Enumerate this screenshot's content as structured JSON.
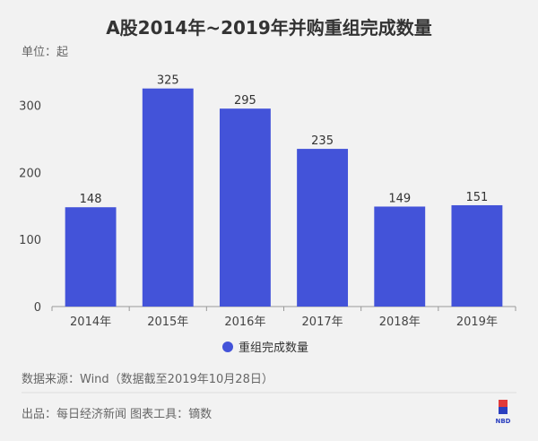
{
  "chart_data": {
    "type": "bar",
    "title": "A股2014年~2019年并购重组完成数量",
    "unit_label": "单位：起",
    "categories": [
      "2014年",
      "2015年",
      "2016年",
      "2017年",
      "2018年",
      "2019年"
    ],
    "series": [
      {
        "name": "重组完成数量",
        "values": [
          148,
          325,
          295,
          235,
          149,
          151
        ]
      }
    ],
    "ylim": [
      0,
      350
    ],
    "yticks": [
      0,
      100,
      200,
      300
    ],
    "grid": false,
    "legend_position": "bottom",
    "bar_color": "#4353d9"
  },
  "footer": {
    "source": "数据来源：Wind（数据截至2019年10月28日）",
    "credit": "出品：每日经济新闻 图表工具：镝数",
    "logo_text": "NBD",
    "logo_colors": {
      "top": "#e23a3a",
      "bottom": "#2b3fbf"
    }
  }
}
